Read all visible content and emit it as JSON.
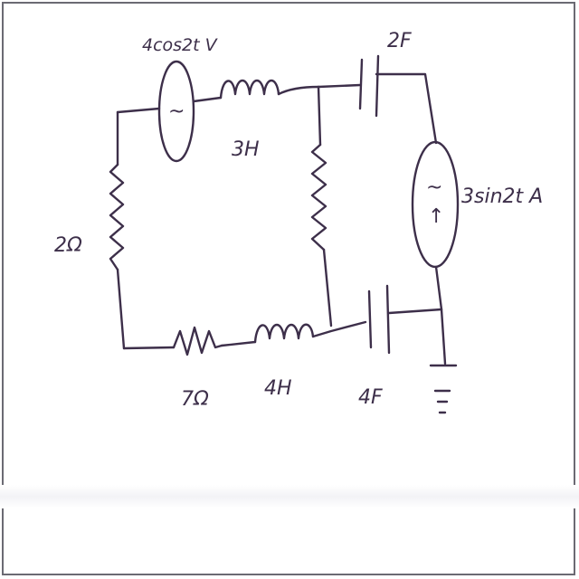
{
  "diagram": {
    "type": "circuit",
    "components": {
      "voltage_source": {
        "label": "4cos2t V",
        "symbol": "~"
      },
      "inductor_top": {
        "label": "3H"
      },
      "capacitor_top": {
        "label": "2F"
      },
      "current_source": {
        "label": "3sin2t A",
        "symbol": "~",
        "arrow": "↑"
      },
      "resistor_left": {
        "label": "2Ω"
      },
      "resistor_middle": {
        "label": ""
      },
      "resistor_bottom": {
        "label": "7Ω"
      },
      "inductor_bottom": {
        "label": "4H"
      },
      "capacitor_bottom": {
        "label": "4F"
      },
      "ground": {
        "label": ""
      }
    }
  }
}
